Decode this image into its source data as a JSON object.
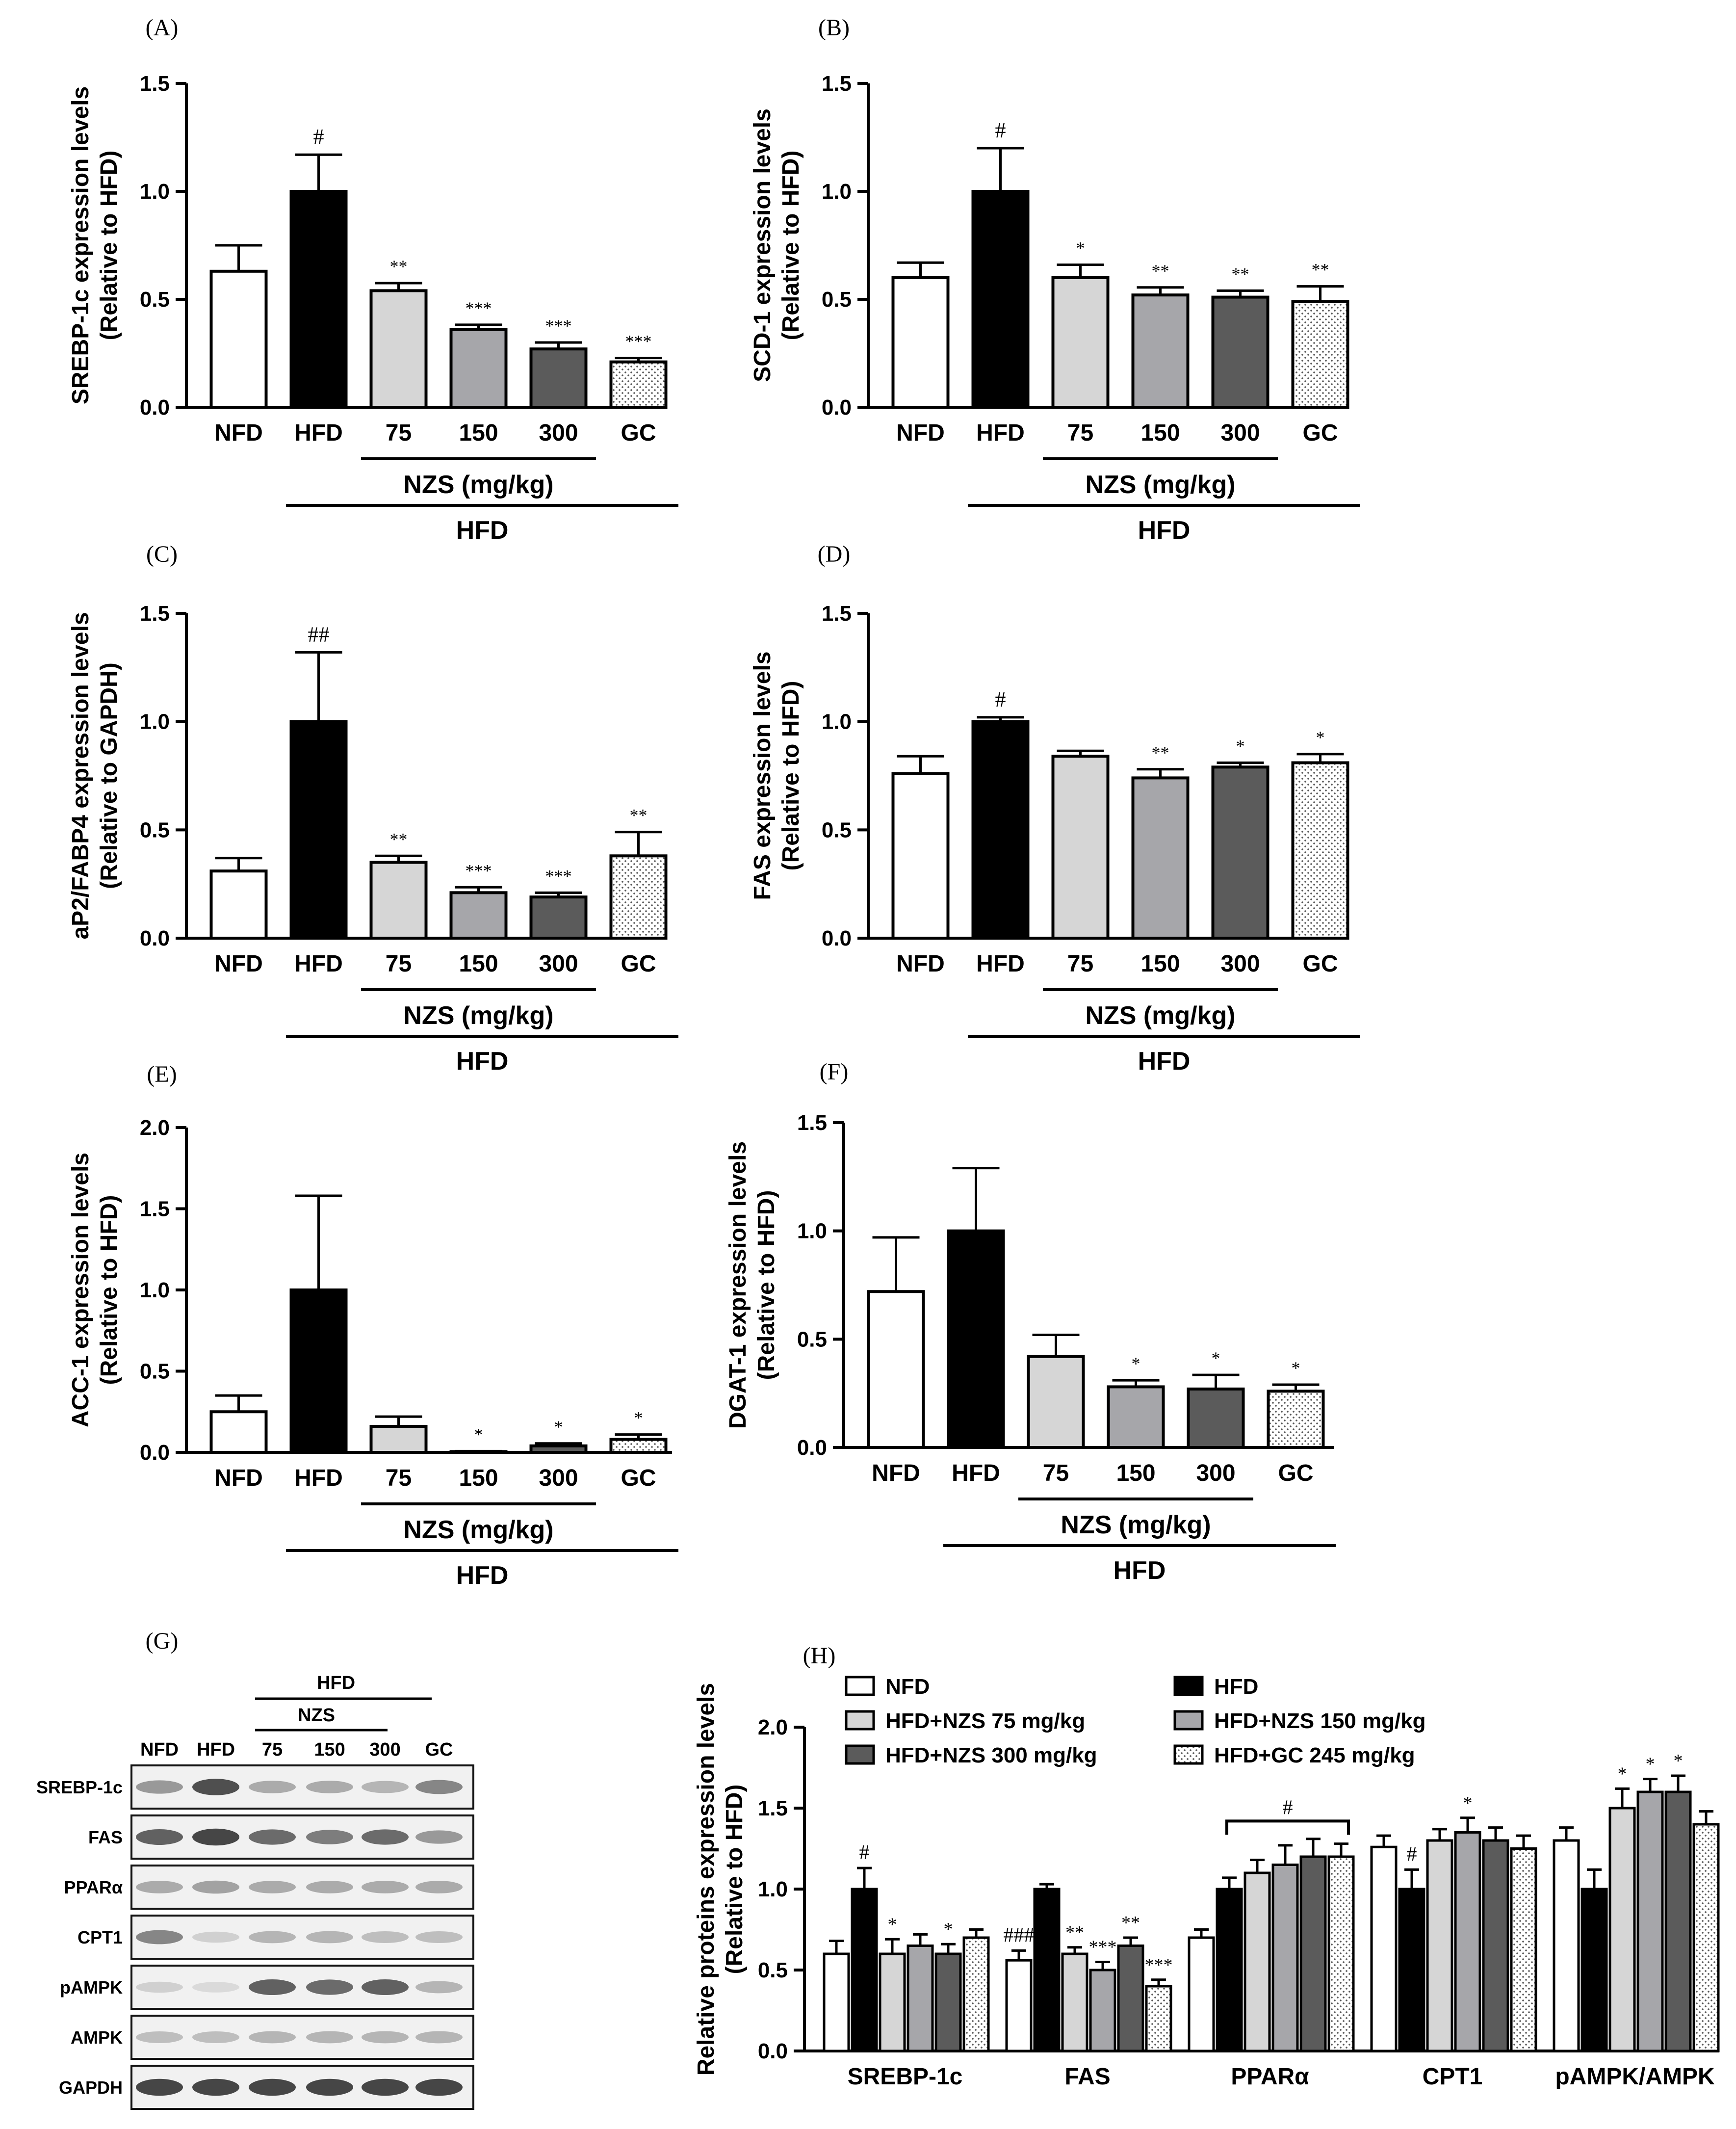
{
  "colors": {
    "NFD": "#ffffff",
    "HFD": "#000000",
    "75": "#d6d6d6",
    "150": "#a6a6aa",
    "300": "#5b5b5b",
    "GC": "dotted"
  },
  "chart_data": [
    {
      "panel": "(A)",
      "type": "bar",
      "ylabel": [
        "SREBP-1c expression levels",
        "(Relative to HFD)"
      ],
      "ylim": [
        0,
        1.5
      ],
      "ticks": [
        "0.0",
        "0.5",
        "1.0",
        "1.5"
      ],
      "categories": [
        "NFD",
        "HFD",
        "75",
        "150",
        "300",
        "GC"
      ],
      "values": [
        0.63,
        1.0,
        0.54,
        0.36,
        0.27,
        0.21
      ],
      "errors": [
        0.12,
        0.17,
        0.035,
        0.022,
        0.03,
        0.018
      ],
      "marks": [
        "",
        "#",
        "**",
        "***",
        "***",
        "***"
      ],
      "group_label": "NZS (mg/kg)",
      "hfd_label": "HFD"
    },
    {
      "panel": "(B)",
      "type": "bar",
      "ylabel": [
        "SCD-1 expression levels",
        "(Relative to HFD)"
      ],
      "ylim": [
        0,
        1.5
      ],
      "ticks": [
        "0.0",
        "0.5",
        "1.0",
        "1.5"
      ],
      "categories": [
        "NFD",
        "HFD",
        "75",
        "150",
        "300",
        "GC"
      ],
      "values": [
        0.6,
        1.0,
        0.6,
        0.52,
        0.51,
        0.49
      ],
      "errors": [
        0.07,
        0.2,
        0.06,
        0.035,
        0.03,
        0.07
      ],
      "marks": [
        "",
        "#",
        "*",
        "**",
        "**",
        "**"
      ],
      "group_label": "NZS (mg/kg)",
      "hfd_label": "HFD"
    },
    {
      "panel": "(C)",
      "type": "bar",
      "ylabel": [
        "aP2/FABP4 expression levels",
        "(Relative to GAPDH)"
      ],
      "ylim": [
        0,
        1.5
      ],
      "ticks": [
        "0.0",
        "0.5",
        "1.0",
        "1.5"
      ],
      "categories": [
        "NFD",
        "HFD",
        "75",
        "150",
        "300",
        "GC"
      ],
      "values": [
        0.31,
        1.0,
        0.35,
        0.21,
        0.19,
        0.38
      ],
      "errors": [
        0.06,
        0.32,
        0.03,
        0.025,
        0.02,
        0.11
      ],
      "marks": [
        "",
        "##",
        "**",
        "***",
        "***",
        "**"
      ],
      "group_label": "NZS (mg/kg)",
      "hfd_label": "HFD"
    },
    {
      "panel": "(D)",
      "type": "bar",
      "ylabel": [
        "FAS expression levels",
        "(Relative to HFD)"
      ],
      "ylim": [
        0,
        1.5
      ],
      "ticks": [
        "0.0",
        "0.5",
        "1.0",
        "1.5"
      ],
      "categories": [
        "NFD",
        "HFD",
        "75",
        "150",
        "300",
        "GC"
      ],
      "values": [
        0.76,
        1.0,
        0.84,
        0.74,
        0.79,
        0.81
      ],
      "errors": [
        0.08,
        0.02,
        0.025,
        0.04,
        0.02,
        0.04
      ],
      "marks": [
        "",
        "#",
        "",
        "**",
        "*",
        "*"
      ],
      "group_label": "NZS (mg/kg)",
      "hfd_label": "HFD"
    },
    {
      "panel": "(E)",
      "type": "bar",
      "ylabel": [
        "ACC-1 expression levels",
        "(Relative to  HFD)"
      ],
      "ylim": [
        0,
        2.0
      ],
      "ticks": [
        "0.0",
        "0.5",
        "1.0",
        "1.5",
        "2.0"
      ],
      "categories": [
        "NFD",
        "HFD",
        "75",
        "150",
        "300",
        "GC"
      ],
      "values": [
        0.25,
        1.0,
        0.16,
        0.005,
        0.04,
        0.08
      ],
      "errors": [
        0.1,
        0.58,
        0.06,
        0.003,
        0.015,
        0.03
      ],
      "marks": [
        "",
        "",
        "",
        "*",
        "*",
        "*"
      ],
      "group_label": "NZS (mg/kg)",
      "hfd_label": "HFD"
    },
    {
      "panel": "(F)",
      "type": "bar",
      "ylabel": [
        "DGAT-1 expression levels",
        "(Relative to HFD)"
      ],
      "ylim": [
        0,
        1.5
      ],
      "ticks": [
        "0.0",
        "0.5",
        "1.0",
        "1.5"
      ],
      "categories": [
        "NFD",
        "HFD",
        "75",
        "150",
        "300",
        "GC"
      ],
      "values": [
        0.72,
        1.0,
        0.42,
        0.28,
        0.27,
        0.26
      ],
      "errors": [
        0.25,
        0.29,
        0.1,
        0.03,
        0.065,
        0.03
      ],
      "marks": [
        "",
        "",
        "",
        "*",
        "*",
        "*"
      ],
      "group_label": "NZS (mg/kg)",
      "hfd_label": "HFD"
    },
    {
      "panel": "(H)",
      "type": "bar",
      "ylabel": [
        "Relative proteins expression levels",
        "(Relative to HFD)"
      ],
      "ylim": [
        0,
        2.0
      ],
      "ticks": [
        "0.0",
        "0.5",
        "1.0",
        "1.5",
        "2.0"
      ],
      "categories": [
        "SREBP-1c",
        "FAS",
        "PPARα",
        "CPT1",
        "pAMPK/AMPK"
      ],
      "legend": [
        "NFD",
        "HFD",
        "HFD+NZS 75 mg/kg",
        "HFD+NZS 150 mg/kg",
        "HFD+NZS 300 mg/kg",
        "HFD+GC 245 mg/kg"
      ],
      "series": [
        {
          "name": "NFD",
          "values": [
            0.6,
            0.56,
            0.7,
            1.26,
            1.3
          ],
          "errors": [
            0.08,
            0.06,
            0.05,
            0.07,
            0.08
          ]
        },
        {
          "name": "HFD",
          "values": [
            1.0,
            1.0,
            1.0,
            1.0,
            1.0
          ],
          "errors": [
            0.13,
            0.03,
            0.07,
            0.12,
            0.12
          ]
        },
        {
          "name": "HFD+NZS 75 mg/kg",
          "values": [
            0.6,
            0.6,
            1.1,
            1.3,
            1.5
          ],
          "errors": [
            0.09,
            0.04,
            0.08,
            0.07,
            0.12
          ]
        },
        {
          "name": "HFD+NZS 150 mg/kg",
          "values": [
            0.65,
            0.5,
            1.15,
            1.35,
            1.6
          ],
          "errors": [
            0.07,
            0.05,
            0.12,
            0.09,
            0.08
          ]
        },
        {
          "name": "HFD+NZS 300 mg/kg",
          "values": [
            0.6,
            0.65,
            1.2,
            1.3,
            1.6
          ],
          "errors": [
            0.06,
            0.05,
            0.11,
            0.08,
            0.1
          ]
        },
        {
          "name": "HFD+GC 245 mg/kg",
          "values": [
            0.7,
            0.4,
            1.2,
            1.25,
            1.4
          ],
          "errors": [
            0.05,
            0.04,
            0.08,
            0.08,
            0.08
          ]
        }
      ],
      "marks": [
        [
          "",
          "#",
          "*",
          "",
          "*",
          ""
        ],
        [
          "###",
          "",
          "**",
          "***",
          "**",
          "***"
        ],
        [
          "",
          "",
          "",
          "",
          "",
          ""
        ],
        [
          "",
          "#",
          "",
          "*",
          "",
          ""
        ],
        [
          "",
          "",
          "*",
          "*",
          "*",
          ""
        ]
      ],
      "bracket_mark": "#"
    }
  ],
  "blot": {
    "panel": "(G)",
    "hfd_label": "HFD",
    "nzs_label": "NZS",
    "lanes": [
      "NFD",
      "HFD",
      "75",
      "150",
      "300",
      "GC"
    ],
    "rows": [
      "SREBP-1c",
      "FAS",
      "PPARα",
      "CPT1",
      "pAMPK",
      "AMPK",
      "GAPDH"
    ],
    "intensity": [
      [
        0.45,
        0.85,
        0.35,
        0.35,
        0.3,
        0.55
      ],
      [
        0.75,
        0.9,
        0.7,
        0.6,
        0.7,
        0.45
      ],
      [
        0.35,
        0.4,
        0.35,
        0.35,
        0.35,
        0.35
      ],
      [
        0.55,
        0.15,
        0.3,
        0.3,
        0.25,
        0.25
      ],
      [
        0.15,
        0.1,
        0.75,
        0.7,
        0.75,
        0.3
      ],
      [
        0.25,
        0.25,
        0.3,
        0.3,
        0.3,
        0.3
      ],
      [
        0.9,
        0.9,
        0.9,
        0.9,
        0.9,
        0.9
      ]
    ]
  }
}
